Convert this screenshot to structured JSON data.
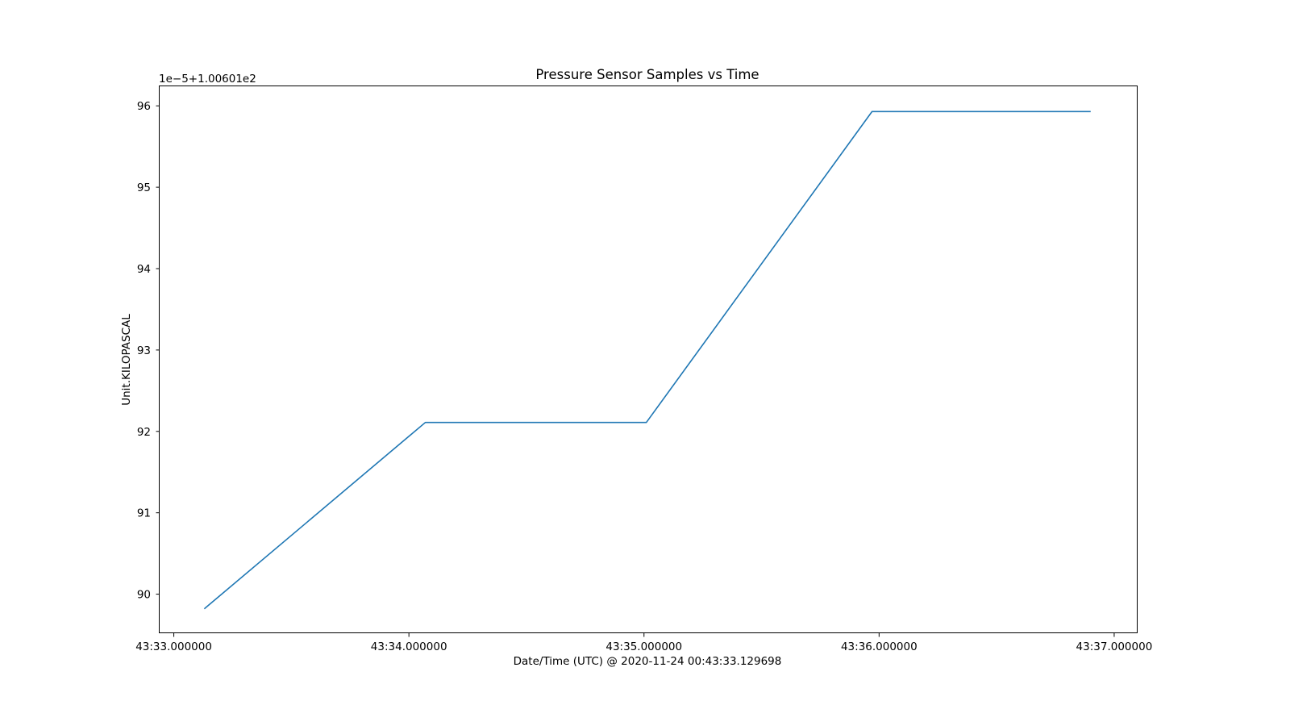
{
  "chart_data": {
    "type": "line",
    "title": "Pressure Sensor Samples vs Time",
    "xlabel": "Date/Time (UTC) @ 2020-11-24 00:43:33.129698",
    "ylabel": "Unit.KILOPASCAL",
    "y_offset_label": "1e−5+1.00601e2",
    "x_ticks": [
      {
        "value": "2020-11-24 00:43:33.000000",
        "label": "43:33.000000"
      },
      {
        "value": "2020-11-24 00:43:34.000000",
        "label": "43:34.000000"
      },
      {
        "value": "2020-11-24 00:43:35.000000",
        "label": "43:35.000000"
      },
      {
        "value": "2020-11-24 00:43:36.000000",
        "label": "43:36.000000"
      },
      {
        "value": "2020-11-24 00:43:37.000000",
        "label": "43:37.000000"
      }
    ],
    "y_ticks": [
      90,
      91,
      92,
      93,
      94,
      95,
      96
    ],
    "xlim": [
      "2020-11-24 00:43:32.939698",
      "2020-11-24 00:43:37.099698"
    ],
    "ylim": [
      89.52,
      96.24
    ],
    "grid": false,
    "series": [
      {
        "color": "#1f77b4",
        "x": [
          "2020-11-24 00:43:33.129698",
          "2020-11-24 00:43:34.070000",
          "2020-11-24 00:43:35.010000",
          "2020-11-24 00:43:35.970000",
          "2020-11-24 00:43:36.900000"
        ],
        "y": [
          89.82,
          92.11,
          92.11,
          95.93,
          95.93
        ]
      }
    ]
  }
}
